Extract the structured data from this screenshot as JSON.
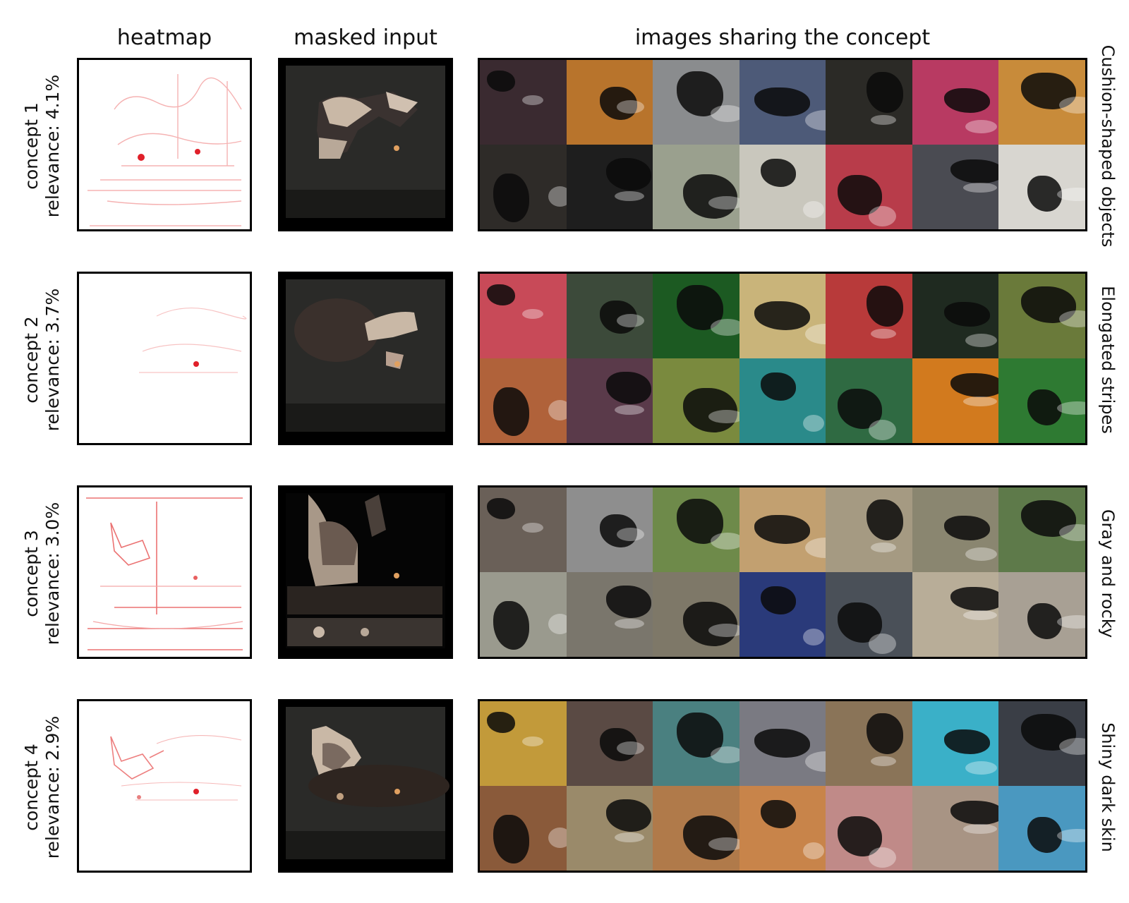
{
  "headers": {
    "heatmap": "heatmap",
    "masked": "masked input",
    "images": "images sharing the concept"
  },
  "concepts": [
    {
      "title": "concept 1",
      "relevance": "relevance: 4.1%",
      "label": "Cushion-shaped objects",
      "tiles": [
        "#3a2a30",
        "#b8742c",
        "#8a8c8e",
        "#4d5a78",
        "#2b2a26",
        "#b83a62",
        "#c88b3a",
        "#2e2b28",
        "#1e1e1e",
        "#9aa08e",
        "#c9c7bd",
        "#b83c4a",
        "#4a4b52",
        "#d8d6d0"
      ]
    },
    {
      "title": "concept 2",
      "relevance": "relevance: 3.7%",
      "label": "Elongated stripes",
      "tiles": [
        "#c84a58",
        "#3c4a3a",
        "#1c5a22",
        "#c9b47a",
        "#b83a3a",
        "#1f2a20",
        "#6a7a3a",
        "#b0623a",
        "#5a3a4a",
        "#7a8a3e",
        "#2a8a8a",
        "#2f6a42",
        "#d27a1e",
        "#2e7a32"
      ]
    },
    {
      "title": "concept 3",
      "relevance": "relevance: 3.0%",
      "label": "Gray and rocky",
      "tiles": [
        "#6a6058",
        "#8e8e8e",
        "#6e8a4a",
        "#c2a070",
        "#a59a82",
        "#8a8670",
        "#5e7a4a",
        "#9a9a8e",
        "#7a766c",
        "#7e7868",
        "#2a3a7a",
        "#4a5058",
        "#b8ad98",
        "#a8a094"
      ]
    },
    {
      "title": "concept 4",
      "relevance": "relevance: 2.9%",
      "label": "Shiny dark skin",
      "tiles": [
        "#c29a3a",
        "#5a4a44",
        "#4a8080",
        "#7a7a82",
        "#8a7458",
        "#3ab0c8",
        "#3a3e46",
        "#8a5a3a",
        "#9a8a6a",
        "#b07a4a",
        "#c8844a",
        "#c08a88",
        "#a89484",
        "#4a98c0"
      ]
    }
  ]
}
